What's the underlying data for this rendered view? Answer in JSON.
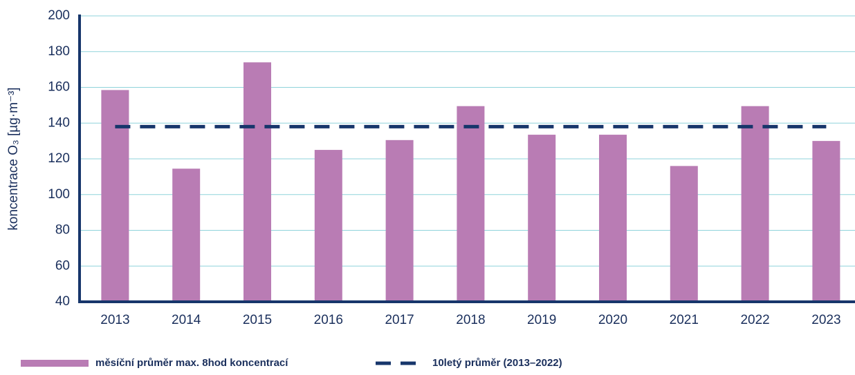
{
  "chart_data": {
    "type": "bar",
    "y_label": "koncentrace O₃ [µg·m⁻³]",
    "categories": [
      "2013",
      "2014",
      "2015",
      "2016",
      "2017",
      "2018",
      "2019",
      "2020",
      "2021",
      "2022",
      "2023"
    ],
    "series": [
      {
        "name": "měsíční průměr max. 8hod koncentrací",
        "type": "bar",
        "color": "#b97cb4",
        "values": [
          158.5,
          114.5,
          174,
          125,
          130.5,
          149.5,
          133.5,
          133.5,
          116,
          149.5,
          130
        ]
      },
      {
        "name": "10letý průměr (2013–2022)",
        "type": "line",
        "dashed": true,
        "color": "#17366b",
        "values": [
          138,
          138,
          138,
          138,
          138,
          138,
          138,
          138,
          138,
          138,
          138
        ]
      }
    ],
    "ylim": [
      40,
      200
    ],
    "yticks": [
      40,
      60,
      80,
      100,
      120,
      140,
      160,
      180,
      200
    ],
    "grid": true
  }
}
